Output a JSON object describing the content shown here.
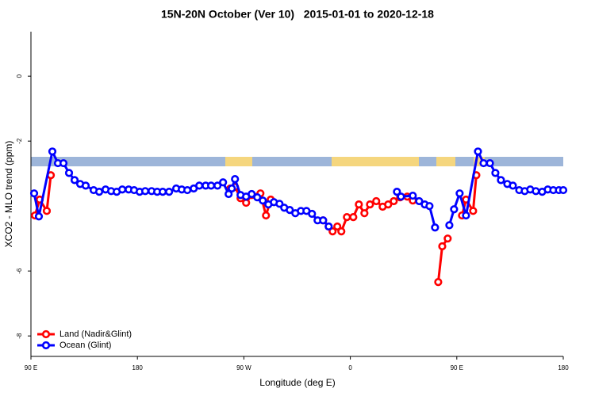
{
  "chart_data": {
    "type": "line",
    "title": "15N-20N October (Ver 10)   2015-01-01 to 2020-12-18",
    "xlabel": "Longitude (deg E)",
    "ylabel": "XCO2 - MLO trend (ppm)",
    "xlim": [
      90,
      540
    ],
    "ylim": [
      -8.63,
      1.37
    ],
    "xticks": [
      {
        "value": 90,
        "label": "90 E"
      },
      180,
      {
        "value": 270,
        "label": "90 W"
      },
      {
        "value": 360,
        "label": "0"
      },
      {
        "value": 450,
        "label": "90 E"
      },
      {
        "value": 540,
        "label": "180"
      }
    ],
    "yticks": [
      0,
      -2,
      -6,
      -8
    ],
    "legend": "bottom-left",
    "series": [
      {
        "name": "Land (Nadir&Glint)",
        "color": "#ff0000",
        "x": [
          93.4,
          97.4,
          103.4,
          106.8,
          200,
          258.5,
          262.5,
          267.2,
          271.9,
          276.6,
          284,
          288.7,
          292.7,
          300,
          337,
          341.7,
          345,
          349,
          352.4,
          357.1,
          362.5,
          367.2,
          371.9,
          376.6,
          381.9,
          387.3,
          392,
          396.7,
          402.1,
          408.1,
          412.8,
          420,
          434.3,
          437.7,
          442.3,
          445,
          454.4,
          457.8,
          463.8,
          466.5
        ],
        "values": [
          -4.29,
          -3.8,
          -4.15,
          -3.05,
          null,
          -3.46,
          -3.41,
          -3.76,
          -3.9,
          -3.66,
          -3.61,
          -4.29,
          -3.8,
          null,
          -4.44,
          -4.63,
          -4.78,
          -4.63,
          -4.78,
          -4.34,
          -4.34,
          -3.95,
          -4.22,
          -3.95,
          -3.85,
          -4.02,
          -3.95,
          -3.85,
          -3.73,
          -3.71,
          -3.83,
          null,
          -6.34,
          -5.24,
          -5.0,
          null,
          -4.29,
          -3.8,
          -4.15,
          -3.05
        ]
      },
      {
        "name": "Ocean (Glint)",
        "color": "#0000ff",
        "x": [
          92.7,
          96.7,
          108.1,
          112.8,
          117.5,
          122.2,
          126.9,
          131.6,
          136.3,
          143,
          147.7,
          153.1,
          157.8,
          162.5,
          167.2,
          172.6,
          177.2,
          181.9,
          186.6,
          192,
          196.7,
          201.4,
          206.8,
          212.8,
          217.5,
          222.2,
          227.6,
          232.3,
          237.7,
          242.3,
          247.7,
          252.4,
          257.1,
          259.8,
          262.5,
          267.2,
          271.9,
          276.6,
          281.3,
          286,
          290.7,
          295.4,
          300.1,
          304.1,
          308.8,
          313.5,
          318.2,
          322.9,
          327.6,
          332.3,
          337,
          341.7,
          380,
          399.4,
          402.8,
          412.8,
          418.2,
          422.9,
          426.9,
          431.6,
          440,
          443.7,
          447.7,
          452.4,
          457.8,
          467.9,
          472.6,
          478,
          482.6,
          487.3,
          492.7,
          497.4,
          502.8,
          507.4,
          512.1,
          516.8,
          522.2,
          526.9,
          531.6,
          536.3,
          540
        ],
        "values": [
          -3.61,
          -4.32,
          -2.32,
          -2.68,
          -2.68,
          -2.98,
          -3.2,
          -3.32,
          -3.37,
          -3.51,
          -3.56,
          -3.49,
          -3.54,
          -3.56,
          -3.49,
          -3.49,
          -3.51,
          -3.56,
          -3.54,
          -3.54,
          -3.56,
          -3.56,
          -3.56,
          -3.46,
          -3.49,
          -3.51,
          -3.46,
          -3.37,
          -3.37,
          -3.37,
          -3.37,
          -3.27,
          -3.63,
          -3.46,
          -3.17,
          -3.66,
          -3.71,
          -3.63,
          -3.73,
          -3.83,
          -3.95,
          -3.88,
          -3.93,
          -4.05,
          -4.12,
          -4.22,
          -4.15,
          -4.15,
          -4.24,
          -4.44,
          -4.44,
          -4.63,
          null,
          -3.56,
          -3.71,
          -3.68,
          -3.85,
          -3.95,
          -4.0,
          -4.66,
          null,
          -4.59,
          -4.1,
          -3.61,
          -4.29,
          -2.32,
          -2.68,
          -2.68,
          -2.98,
          -3.2,
          -3.32,
          -3.37,
          -3.51,
          -3.54,
          -3.49,
          -3.54,
          -3.56,
          -3.49,
          -3.51,
          -3.51,
          -3.51
        ]
      }
    ]
  }
}
